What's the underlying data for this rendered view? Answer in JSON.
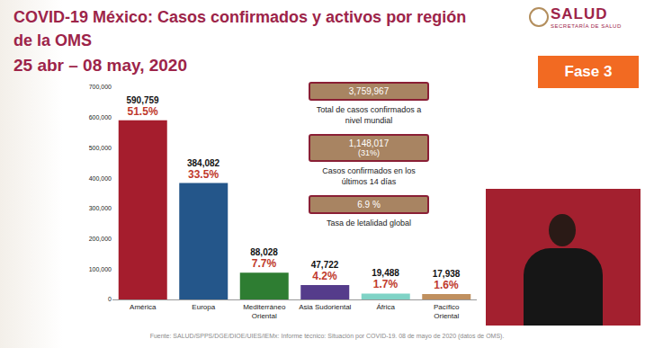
{
  "chart_data": {
    "type": "bar",
    "title_lines": [
      "COVID-19 México: Casos confirmados y activos por región",
      "de la OMS"
    ],
    "subtitle": "25 abr – 08 may, 2020",
    "categories": [
      "América",
      "Europa",
      "Mediterráneo Oriental",
      "Asia Sudoriental",
      "África",
      "Pacífico Oriental"
    ],
    "values": [
      590759,
      384082,
      88028,
      47722,
      19488,
      17938
    ],
    "value_labels": [
      "590,759",
      "384,082",
      "88,028",
      "47,722",
      "19,488",
      "17,938"
    ],
    "share_labels": [
      "51.5%",
      "33.5%",
      "7.7%",
      "4.2%",
      "1.7%",
      "1.6%"
    ],
    "colors": [
      "#a51d2d",
      "#24568a",
      "#2e7d32",
      "#553c8b",
      "#7fd3c6",
      "#c0905f"
    ],
    "data_labels": true,
    "grid": false,
    "ylim": [
      0,
      700000
    ],
    "yticks": [
      0,
      {
        "value": 100000,
        "label": "100,000"
      },
      {
        "value": 200000,
        "label": "200,000"
      },
      {
        "value": 300000,
        "label": "300,000"
      },
      {
        "value": 400000,
        "label": "400,000"
      },
      {
        "value": 500000,
        "label": "500,000"
      },
      {
        "value": 600000,
        "label": "600,000"
      },
      {
        "value": 700000,
        "label": "700,000"
      }
    ],
    "info_boxes": [
      {
        "value_text": "3,759,967",
        "label": "Total de casos confirmados a nivel mundial"
      },
      {
        "value_text": "1,148,017",
        "sub_text": "(31%)",
        "label": "Casos confirmados en los últimos 14 días"
      },
      {
        "value_text": "6.9 %",
        "label": "Tasa de letalidad global"
      }
    ],
    "phase": "Fase 3",
    "logo": {
      "text": "SALUD",
      "subtext": "SECRETARÍA DE SALUD"
    },
    "source": "Fuente: SALUD/SPPS/DGE/DIOE/UIES/IEMx: Informe técnico: Situación por COVID-19. 08 de mayo de 2020 (datos de OMS)."
  }
}
